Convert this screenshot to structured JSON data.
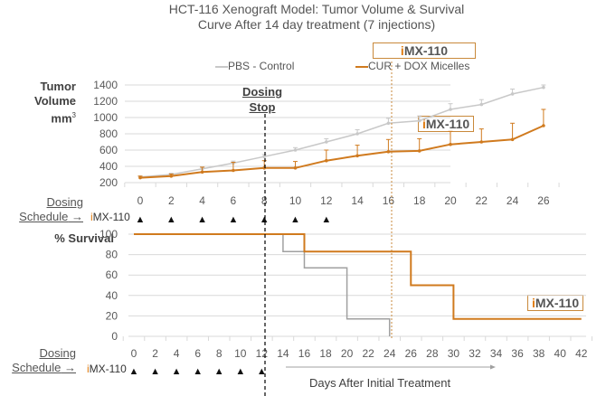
{
  "title_line1": "HCT-116 Xenograft Model: Tumor Volume & Survival",
  "title_line2": "Curve After 14 day treatment (7 injections)",
  "brand": {
    "prefix": "i",
    "rest": "MX-110"
  },
  "colors": {
    "pbs": "#c8c8c8",
    "pbs_survival": "#a0a0a0",
    "cur": "#d07a1e",
    "grid": "#d9d9d9",
    "accent_i": "#e07b10"
  },
  "legend": {
    "pbs": "PBS - Control",
    "cur": "CUR + DOX Micelles"
  },
  "dosing_stop": {
    "line1": "Dosing",
    "line2": "Stop"
  },
  "dosing_schedule": {
    "line1": "Dosing",
    "line2": "Schedule",
    "arrow": "→",
    "marker": "▲",
    "days": [
      0,
      2,
      4,
      6,
      8,
      10,
      12
    ]
  },
  "tumor_ylabel": {
    "line1": "Tumor",
    "line2": "Volume",
    "line3": "mm",
    "sup": "3"
  },
  "survival_ylabel": "% Survival",
  "xlabel": "Days After Initial Treatment",
  "chart_data": [
    {
      "type": "line",
      "title": "Tumor Volume",
      "ylabel": "Tumor Volume mm3",
      "xlabel": "",
      "x": [
        0,
        2,
        4,
        6,
        8,
        10,
        12,
        14,
        16,
        18,
        20,
        22,
        24,
        26
      ],
      "ylim": [
        200,
        1400
      ],
      "yticks": [
        200,
        400,
        600,
        800,
        1000,
        1200,
        1400
      ],
      "xticks": [
        0,
        2,
        4,
        6,
        8,
        10,
        12,
        14,
        16,
        18,
        20,
        22,
        24,
        26
      ],
      "grid": true,
      "legend_position": "top",
      "series": [
        {
          "name": "PBS - Control",
          "values": [
            270,
            300,
            370,
            440,
            520,
            600,
            700,
            800,
            930,
            960,
            1100,
            1160,
            1290,
            1370
          ],
          "errors": [
            10,
            15,
            20,
            25,
            25,
            30,
            40,
            50,
            60,
            60,
            70,
            60,
            60,
            30
          ]
        },
        {
          "name": "CUR + DOX Micelles",
          "values": [
            260,
            280,
            330,
            350,
            380,
            380,
            470,
            530,
            580,
            590,
            670,
            700,
            730,
            900
          ],
          "errors": [
            20,
            25,
            60,
            100,
            90,
            80,
            130,
            130,
            150,
            150,
            160,
            160,
            200,
            200
          ]
        }
      ],
      "annotations": [
        "Dosing Stop at day 12",
        "iMX-110",
        "vertical marker at day 24"
      ]
    },
    {
      "type": "line",
      "title": "% Survival",
      "ylabel": "% Survival",
      "xlabel": "Days After Initial Treatment",
      "ylim": [
        0,
        100
      ],
      "yticks": [
        0,
        20,
        40,
        60,
        80,
        100
      ],
      "xticks": [
        0,
        2,
        4,
        6,
        8,
        10,
        12,
        14,
        16,
        18,
        20,
        22,
        24,
        26,
        28,
        30,
        32,
        34,
        36,
        38,
        40,
        42
      ],
      "grid": true,
      "step": true,
      "series": [
        {
          "name": "PBS - Control",
          "x": [
            0,
            14,
            14,
            16,
            16,
            20,
            20,
            24,
            24
          ],
          "values": [
            100,
            100,
            83,
            83,
            67,
            67,
            17,
            17,
            0
          ]
        },
        {
          "name": "CUR + DOX Micelles",
          "x": [
            0,
            16,
            16,
            26,
            26,
            30,
            30,
            42
          ],
          "values": [
            100,
            100,
            83,
            83,
            50,
            50,
            17,
            17
          ]
        }
      ],
      "annotations": [
        "Dosing Stop at day 12",
        "iMX-110",
        "vertical marker at day 24"
      ]
    }
  ]
}
